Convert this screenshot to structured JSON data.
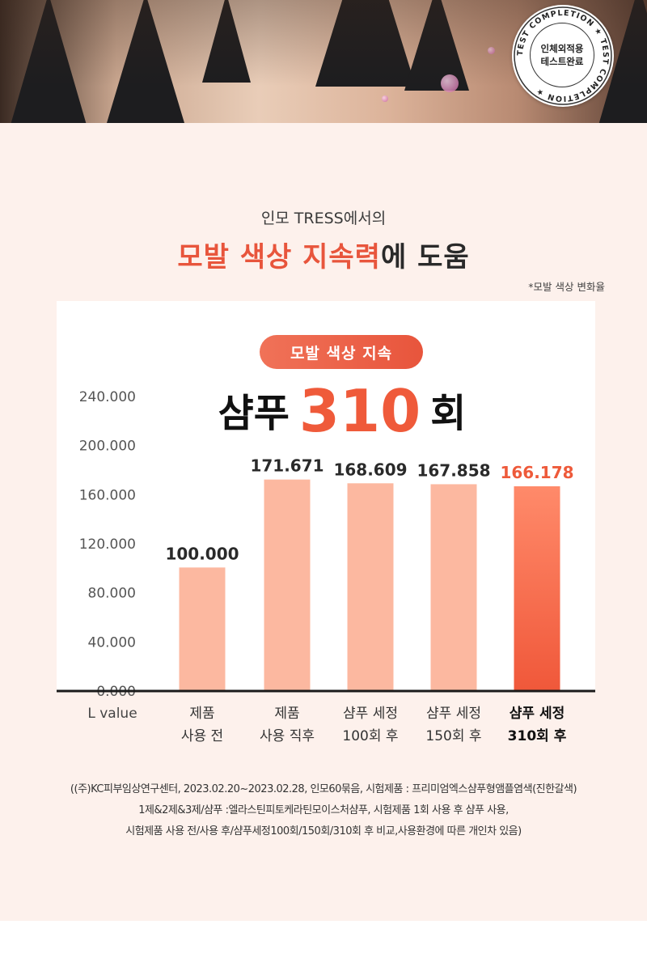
{
  "stamp": {
    "ring_text": "TEST COMPLETION  ★  TEST COMPLETION  ★  ",
    "line1": "인체외적용",
    "line2": "테스트완료"
  },
  "header": {
    "subtitle": "인모 TRESS에서의",
    "headline_accent": "모발 색상 지속력",
    "headline_rest": "에 도움",
    "note": "*모발 색상 변화율"
  },
  "badge": {
    "label": "모발 색상 지속"
  },
  "callout": {
    "word1": "샴푸",
    "number": "310",
    "word2": "회"
  },
  "chart_data": {
    "type": "bar",
    "xlabel": "L value",
    "ylim": [
      0,
      240
    ],
    "yticks": [
      "0.000",
      "40.000",
      "80.000",
      "120.000",
      "160.000",
      "200.000",
      "240.000"
    ],
    "categories": [
      [
        "제품",
        "사용 전"
      ],
      [
        "제품",
        "사용 직후"
      ],
      [
        "샴푸 세정",
        "100회 후"
      ],
      [
        "샴푸 세정",
        "150회 후"
      ],
      [
        "샴푸 세정",
        "310회 후"
      ]
    ],
    "values": [
      100.0,
      171.671,
      168.609,
      167.858,
      166.178
    ],
    "value_labels": [
      "100.000",
      "171.671",
      "168.609",
      "167.858",
      "166.178"
    ],
    "highlight_index": 4,
    "colors": {
      "bar": "#fcb8a0",
      "highlight_top": "#ff8a6a",
      "highlight_bottom": "#f0583a",
      "highlight_text": "#ee5a3a",
      "text": "#2a2a2a",
      "tick": "#555555"
    }
  },
  "footnote": {
    "line1": "((주)KC피부임상연구센터, 2023.02.20~2023.02.28, 인모60묶음, 시험제품 : 프리미엄엑스샴푸형앰플염색(진한갈색)",
    "line2": "1제&2제&3제/샴푸 :엘라스틴피토케라틴모이스처샴푸, 시험제품 1회 사용 후 샴푸 사용,",
    "line3": "시험제품 사용 전/사용 후/샴푸세정100회/150회/310회 후 비교,사용환경에 따른 개인차 있음)"
  }
}
